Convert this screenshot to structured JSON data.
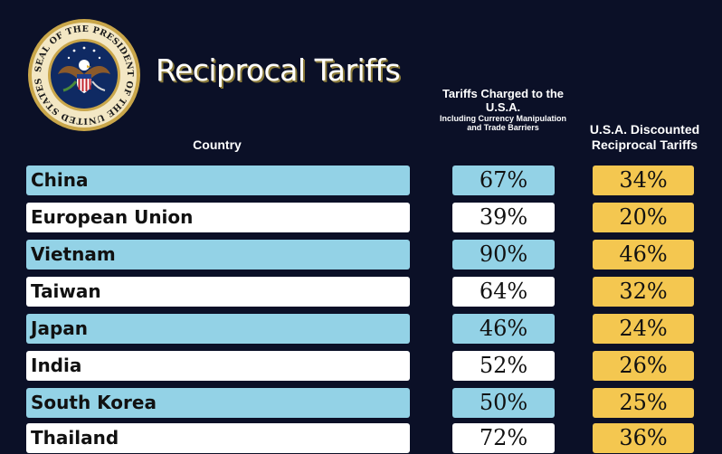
{
  "header": {
    "title": "Reciprocal Tariffs",
    "seal_text": "SEAL OF THE PRESIDENT OF THE UNITED STATES"
  },
  "columns": {
    "country": "Country",
    "charged": "Tariffs Charged to the U.S.A.",
    "charged_sub": "Including Currency Manipulation and Trade Barriers",
    "reciprocal": "U.S.A. Discounted Reciprocal Tariffs"
  },
  "colors": {
    "background": "#0b1027",
    "row_alt": "#93d2e6",
    "row_plain": "#ffffff",
    "reciprocal": "#f4c750"
  },
  "rows": [
    {
      "country": "China",
      "charged": "67%",
      "reciprocal": "34%"
    },
    {
      "country": "European Union",
      "charged": "39%",
      "reciprocal": "20%"
    },
    {
      "country": "Vietnam",
      "charged": "90%",
      "reciprocal": "46%"
    },
    {
      "country": "Taiwan",
      "charged": "64%",
      "reciprocal": "32%"
    },
    {
      "country": "Japan",
      "charged": "46%",
      "reciprocal": "24%"
    },
    {
      "country": "India",
      "charged": "52%",
      "reciprocal": "26%"
    },
    {
      "country": "South Korea",
      "charged": "50%",
      "reciprocal": "25%"
    },
    {
      "country": "Thailand",
      "charged": "72%",
      "reciprocal": "36%"
    }
  ]
}
